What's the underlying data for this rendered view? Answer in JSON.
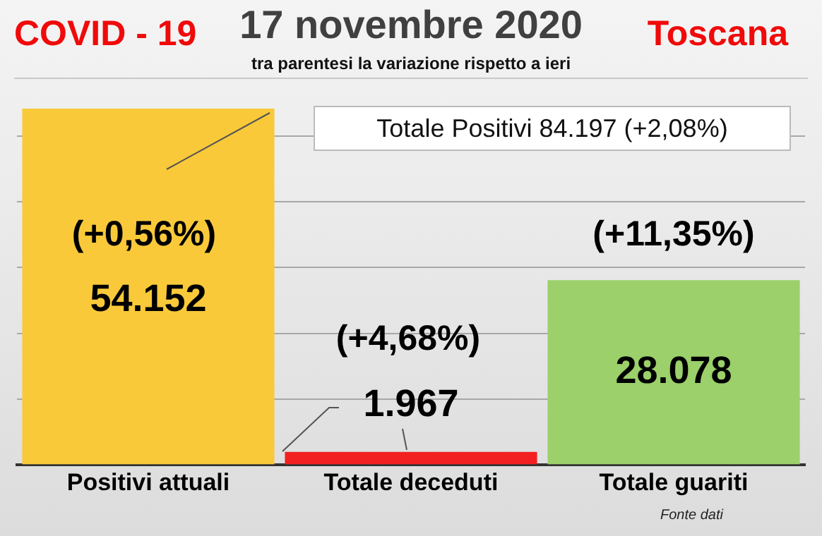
{
  "chart_data": {
    "type": "bar",
    "title": "17 novembre 2020",
    "subtitle": "tra parentesi la variazione rispetto a ieri",
    "categories": [
      "Positivi attuali",
      "Totale deceduti",
      "Totale guariti"
    ],
    "values": [
      54152,
      1967,
      28078
    ],
    "colors": [
      "#f9c93a",
      "#f22020",
      "#9bd06a"
    ],
    "value_labels": [
      "54.152",
      "1.967",
      "28.078"
    ],
    "ylim": [
      0,
      55000
    ],
    "yticks": [
      {
        "value": 0,
        "label": null
      },
      {
        "value": 10000,
        "label": null
      },
      {
        "value": 20000,
        "label": null
      },
      {
        "value": 30000,
        "label": null
      },
      {
        "value": 40000,
        "label": null
      },
      {
        "value": 50000,
        "label": null
      }
    ],
    "grid": "y",
    "tick_labels": "x",
    "legend": false,
    "annotations": [
      "COVID - 19",
      "Toscana",
      "Totale Positivi     84.197 (+2,08%)",
      "(+0,56%)",
      "(+4,68%)",
      "(+11,35%)",
      "Fonte dati"
    ]
  }
}
